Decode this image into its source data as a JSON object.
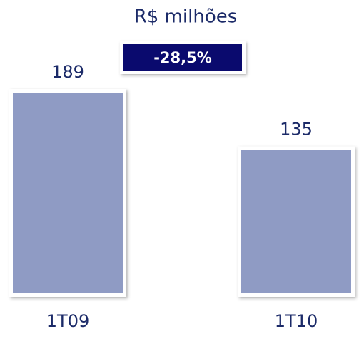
{
  "chart_data": {
    "type": "bar",
    "subtitle": "R$ milhões",
    "categories": [
      "1T09",
      "1T10"
    ],
    "values": [
      189,
      135
    ],
    "color": "#8f9bc4",
    "annotation": "-28,5%"
  }
}
